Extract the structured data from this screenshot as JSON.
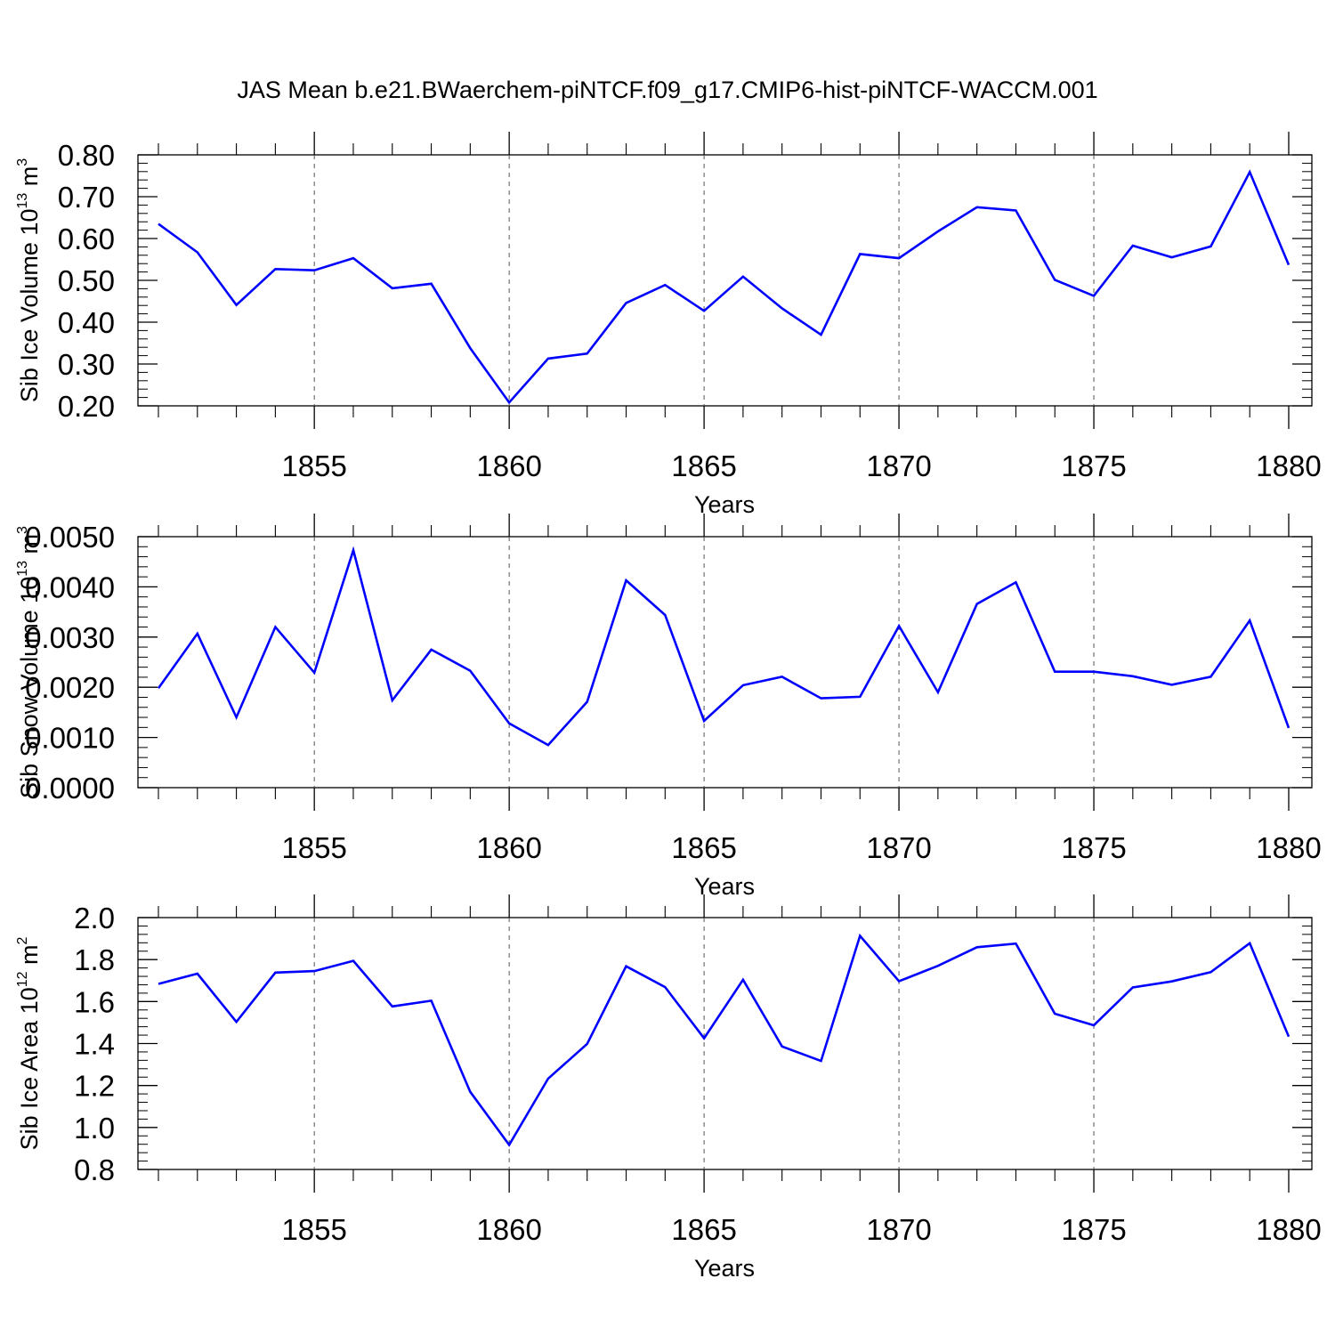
{
  "title": "JAS Mean b.e21.BWaerchem-piNTCF.f09_g17.CMIP6-hist-piNTCF-WACCM.001",
  "line_color": "#0000ff",
  "grid_color": "#555555",
  "chart_data": [
    {
      "type": "line",
      "title": "JAS Mean b.e21.BWaerchem-piNTCF.f09_g17.CMIP6-hist-piNTCF-WACCM.001",
      "xlabel": "Years",
      "ylabel_parts": [
        "Sib Ice Volume 10",
        "13",
        " m",
        "3"
      ],
      "xlim": [
        1851,
        1880
      ],
      "ylim": [
        0.2,
        0.8
      ],
      "xticks": [
        1855,
        1860,
        1865,
        1870,
        1875,
        1880
      ],
      "yticks": [
        "0.20",
        "0.30",
        "0.40",
        "0.50",
        "0.60",
        "0.70",
        "0.80"
      ],
      "ytick_values": [
        0.2,
        0.3,
        0.4,
        0.5,
        0.6,
        0.7,
        0.8
      ],
      "grid": "vertical dashed at major x ticks",
      "x": [
        1851,
        1852,
        1853,
        1854,
        1855,
        1856,
        1857,
        1858,
        1859,
        1860,
        1861,
        1862,
        1863,
        1864,
        1865,
        1866,
        1867,
        1868,
        1869,
        1870,
        1871,
        1872,
        1873,
        1874,
        1875,
        1876,
        1877,
        1878,
        1879,
        1880
      ],
      "values": [
        0.635,
        0.567,
        0.441,
        0.527,
        0.524,
        0.553,
        0.481,
        0.492,
        0.338,
        0.208,
        0.313,
        0.325,
        0.446,
        0.489,
        0.427,
        0.509,
        0.433,
        0.37,
        0.563,
        0.553,
        0.617,
        0.675,
        0.667,
        0.501,
        0.463,
        0.583,
        0.555,
        0.581,
        0.759,
        0.537
      ]
    },
    {
      "type": "line",
      "xlabel": "Years",
      "ylabel_parts": [
        "Sib Snow Volume 10",
        "13",
        " m",
        "3"
      ],
      "xlim": [
        1851,
        1880
      ],
      "ylim": [
        0.0,
        0.005
      ],
      "xticks": [
        1855,
        1860,
        1865,
        1870,
        1875,
        1880
      ],
      "yticks": [
        "0.0000",
        "0.0010",
        "0.0020",
        "0.0030",
        "0.0040",
        "0.0050"
      ],
      "ytick_values": [
        0.0,
        0.001,
        0.002,
        0.003,
        0.004,
        0.005
      ],
      "grid": "vertical dashed at major x ticks",
      "x": [
        1851,
        1852,
        1853,
        1854,
        1855,
        1856,
        1857,
        1858,
        1859,
        1860,
        1861,
        1862,
        1863,
        1864,
        1865,
        1866,
        1867,
        1868,
        1869,
        1870,
        1871,
        1872,
        1873,
        1874,
        1875,
        1876,
        1877,
        1878,
        1879,
        1880
      ],
      "values": [
        0.00198,
        0.00307,
        0.0014,
        0.0032,
        0.00229,
        0.00473,
        0.00174,
        0.00275,
        0.00233,
        0.00128,
        0.00085,
        0.00171,
        0.00413,
        0.00344,
        0.00133,
        0.00204,
        0.00221,
        0.00178,
        0.00181,
        0.00322,
        0.0019,
        0.00366,
        0.00409,
        0.00231,
        0.00231,
        0.00222,
        0.00205,
        0.00221,
        0.00333,
        0.00119
      ]
    },
    {
      "type": "line",
      "xlabel": "Years",
      "ylabel_parts": [
        "Sib Ice Area 10",
        "12",
        " m",
        "2"
      ],
      "xlim": [
        1851,
        1880
      ],
      "ylim": [
        0.8,
        2.0
      ],
      "xticks": [
        1855,
        1860,
        1865,
        1870,
        1875,
        1880
      ],
      "yticks": [
        "0.8",
        "1.0",
        "1.2",
        "1.4",
        "1.6",
        "1.8",
        "2.0"
      ],
      "ytick_values": [
        0.8,
        1.0,
        1.2,
        1.4,
        1.6,
        1.8,
        2.0
      ],
      "grid": "vertical dashed at major x ticks",
      "x": [
        1851,
        1852,
        1853,
        1854,
        1855,
        1856,
        1857,
        1858,
        1859,
        1860,
        1861,
        1862,
        1863,
        1864,
        1865,
        1866,
        1867,
        1868,
        1869,
        1870,
        1871,
        1872,
        1873,
        1874,
        1875,
        1876,
        1877,
        1878,
        1879,
        1880
      ],
      "values": [
        1.684,
        1.733,
        1.503,
        1.738,
        1.745,
        1.794,
        1.577,
        1.604,
        1.17,
        0.917,
        1.233,
        1.398,
        1.768,
        1.669,
        1.425,
        1.704,
        1.386,
        1.317,
        1.913,
        1.697,
        1.77,
        1.859,
        1.876,
        1.542,
        1.487,
        1.667,
        1.696,
        1.74,
        1.878,
        1.433
      ]
    }
  ]
}
